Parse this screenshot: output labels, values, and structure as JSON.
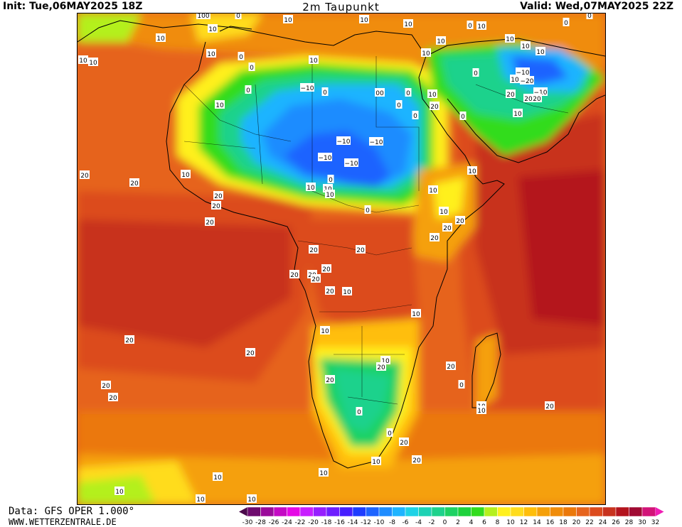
{
  "header": {
    "init": "Init: Tue,06MAY2025 18Z",
    "title": "2m Taupunkt",
    "valid": "Valid: Wed,07MAY2025 22Z"
  },
  "footer": {
    "data_source": "Data: GFS OPER 1.000°",
    "website": "WWW.WETTERZENTRALE.DE"
  },
  "legend": {
    "ticks": [
      "-30",
      "-28",
      "-26",
      "-24",
      "-22",
      "-20",
      "-18",
      "-16",
      "-14",
      "-12",
      "-10",
      "-8",
      "-6",
      "-4",
      "-2",
      "0",
      "2",
      "4",
      "6",
      "8",
      "10",
      "12",
      "14",
      "16",
      "18",
      "20",
      "22",
      "24",
      "26",
      "28",
      "30",
      "32"
    ],
    "colors": [
      "#4b0a4b",
      "#6e0a6e",
      "#9a0a9a",
      "#c40ac4",
      "#e50ae5",
      "#c81eff",
      "#961eff",
      "#6e1eff",
      "#461eff",
      "#1e3cff",
      "#1e64ff",
      "#1e8cff",
      "#1eb4ff",
      "#1ed2e6",
      "#1ed2b4",
      "#1ed28c",
      "#1ed264",
      "#1ed23c",
      "#32dc1e",
      "#b4f01e",
      "#fff01e",
      "#ffdc1e",
      "#ffbe0a",
      "#f5a00a",
      "#f08c0a",
      "#eb780a",
      "#e6641e",
      "#dc4b1e",
      "#c8321e",
      "#b4141e",
      "#a00a32",
      "#d21478",
      "#f01eb4"
    ]
  },
  "colors": {
    "ocean_warm": "#e6641e",
    "deep_warm": "#b4141e",
    "sahara_dry": "#1e8cff",
    "kalahari": "#1ed28c"
  },
  "map_labels": [
    {
      "text": "100"
    },
    {
      "text": "10"
    },
    {
      "text": "10"
    },
    {
      "text": "10"
    },
    {
      "text": "10"
    },
    {
      "text": "10"
    },
    {
      "text": "10"
    },
    {
      "text": "10"
    },
    {
      "text": "10"
    },
    {
      "text": "10"
    },
    {
      "text": "0"
    },
    {
      "text": "0"
    },
    {
      "text": "0"
    },
    {
      "text": "0"
    },
    {
      "text": "10"
    },
    {
      "text": "10"
    },
    {
      "text": "10"
    },
    {
      "text": "10"
    },
    {
      "text": "10"
    },
    {
      "text": "0"
    },
    {
      "text": "10"
    },
    {
      "text": "0"
    },
    {
      "text": "10"
    },
    {
      "text": "−10"
    },
    {
      "text": "0"
    },
    {
      "text": "00"
    },
    {
      "text": "0"
    },
    {
      "text": "0"
    },
    {
      "text": "10"
    },
    {
      "text": "0"
    },
    {
      "text": "−10"
    },
    {
      "text": "−20"
    },
    {
      "text": "−10"
    },
    {
      "text": "20"
    },
    {
      "text": "20"
    },
    {
      "text": "20"
    },
    {
      "text": "10"
    },
    {
      "text": "20"
    },
    {
      "text": "0"
    },
    {
      "text": "0"
    },
    {
      "text": "10"
    },
    {
      "text": "0"
    },
    {
      "text": "−10"
    },
    {
      "text": "−10"
    },
    {
      "text": "−10"
    },
    {
      "text": "−10"
    },
    {
      "text": "10"
    },
    {
      "text": "20"
    },
    {
      "text": "20"
    },
    {
      "text": "10"
    },
    {
      "text": "20"
    },
    {
      "text": "10"
    },
    {
      "text": "10"
    },
    {
      "text": "0"
    },
    {
      "text": "10"
    },
    {
      "text": "0"
    },
    {
      "text": "10"
    },
    {
      "text": "10"
    },
    {
      "text": "20"
    },
    {
      "text": "20"
    },
    {
      "text": "20"
    },
    {
      "text": "20"
    },
    {
      "text": "20"
    },
    {
      "text": "20"
    },
    {
      "text": "20"
    },
    {
      "text": "20"
    },
    {
      "text": "20"
    },
    {
      "text": "20"
    },
    {
      "text": "20"
    },
    {
      "text": "20"
    },
    {
      "text": "10"
    },
    {
      "text": "10"
    },
    {
      "text": "10"
    },
    {
      "text": "10"
    },
    {
      "text": "20"
    },
    {
      "text": "20"
    },
    {
      "text": "0"
    },
    {
      "text": "20"
    },
    {
      "text": "20"
    },
    {
      "text": "20"
    },
    {
      "text": "20"
    },
    {
      "text": "20"
    },
    {
      "text": "0"
    },
    {
      "text": "0"
    },
    {
      "text": "20"
    },
    {
      "text": "10"
    },
    {
      "text": "20"
    },
    {
      "text": "10"
    },
    {
      "text": "20"
    },
    {
      "text": "10"
    },
    {
      "text": "10"
    },
    {
      "text": "10"
    },
    {
      "text": "10"
    },
    {
      "text": "10"
    },
    {
      "text": "10"
    }
  ]
}
